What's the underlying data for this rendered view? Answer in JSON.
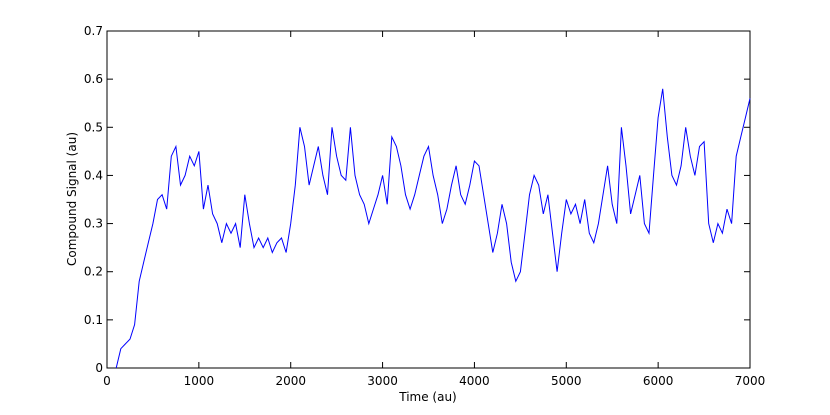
{
  "chart_data": {
    "type": "line",
    "xlabel": "Time (au)",
    "ylabel": "Compound Signal (au)",
    "xlim": [
      0,
      7000
    ],
    "xticks": [
      0,
      1000,
      2000,
      3000,
      4000,
      5000,
      6000,
      7000
    ],
    "ylim": [
      0,
      0.7
    ],
    "yticks": [
      0,
      0.1,
      0.2,
      0.3,
      0.4,
      0.5,
      0.6,
      0.7
    ],
    "series": [
      {
        "color": "#0000ff",
        "x": [
          100,
          150,
          200,
          250,
          300,
          350,
          400,
          450,
          500,
          550,
          600,
          650,
          700,
          750,
          800,
          850,
          900,
          950,
          1000,
          1050,
          1100,
          1150,
          1200,
          1250,
          1300,
          1350,
          1400,
          1450,
          1500,
          1550,
          1600,
          1650,
          1700,
          1750,
          1800,
          1850,
          1900,
          1950,
          2000,
          2050,
          2100,
          2150,
          2200,
          2250,
          2300,
          2350,
          2400,
          2450,
          2500,
          2550,
          2600,
          2650,
          2700,
          2750,
          2800,
          2850,
          2900,
          2950,
          3000,
          3050,
          3100,
          3150,
          3200,
          3250,
          3300,
          3350,
          3400,
          3450,
          3500,
          3550,
          3600,
          3650,
          3700,
          3750,
          3800,
          3850,
          3900,
          3950,
          4000,
          4050,
          4100,
          4150,
          4200,
          4250,
          4300,
          4350,
          4400,
          4450,
          4500,
          4550,
          4600,
          4650,
          4700,
          4750,
          4800,
          4850,
          4900,
          4950,
          5000,
          5050,
          5100,
          5150,
          5200,
          5250,
          5300,
          5350,
          5400,
          5450,
          5500,
          5550,
          5600,
          5650,
          5700,
          5750,
          5800,
          5850,
          5900,
          5950,
          6000,
          6050,
          6100,
          6150,
          6200,
          6250,
          6300,
          6350,
          6400,
          6450,
          6500,
          6550,
          6600,
          6650,
          6700,
          6750,
          6800,
          6850,
          6900,
          6950,
          7000
        ],
        "values": [
          0,
          0.04,
          0.05,
          0.06,
          0.09,
          0.18,
          0.22,
          0.26,
          0.3,
          0.35,
          0.36,
          0.33,
          0.44,
          0.46,
          0.38,
          0.4,
          0.44,
          0.42,
          0.45,
          0.33,
          0.38,
          0.32,
          0.3,
          0.26,
          0.3,
          0.28,
          0.3,
          0.25,
          0.36,
          0.3,
          0.25,
          0.27,
          0.25,
          0.27,
          0.24,
          0.26,
          0.27,
          0.24,
          0.3,
          0.38,
          0.5,
          0.46,
          0.38,
          0.42,
          0.46,
          0.4,
          0.36,
          0.5,
          0.44,
          0.4,
          0.39,
          0.5,
          0.4,
          0.36,
          0.34,
          0.3,
          0.33,
          0.36,
          0.4,
          0.34,
          0.48,
          0.46,
          0.42,
          0.36,
          0.33,
          0.36,
          0.4,
          0.44,
          0.46,
          0.4,
          0.36,
          0.3,
          0.33,
          0.38,
          0.42,
          0.36,
          0.34,
          0.38,
          0.43,
          0.42,
          0.36,
          0.3,
          0.24,
          0.28,
          0.34,
          0.3,
          0.22,
          0.18,
          0.2,
          0.28,
          0.36,
          0.4,
          0.38,
          0.32,
          0.36,
          0.28,
          0.2,
          0.28,
          0.35,
          0.32,
          0.34,
          0.3,
          0.35,
          0.28,
          0.26,
          0.3,
          0.36,
          0.42,
          0.34,
          0.3,
          0.5,
          0.42,
          0.32,
          0.36,
          0.4,
          0.3,
          0.28,
          0.4,
          0.52,
          0.58,
          0.48,
          0.4,
          0.38,
          0.42,
          0.5,
          0.44,
          0.4,
          0.46,
          0.47,
          0.3,
          0.26,
          0.3,
          0.28,
          0.33,
          0.3,
          0.44,
          0.48,
          0.52,
          0.56
        ]
      }
    ]
  }
}
